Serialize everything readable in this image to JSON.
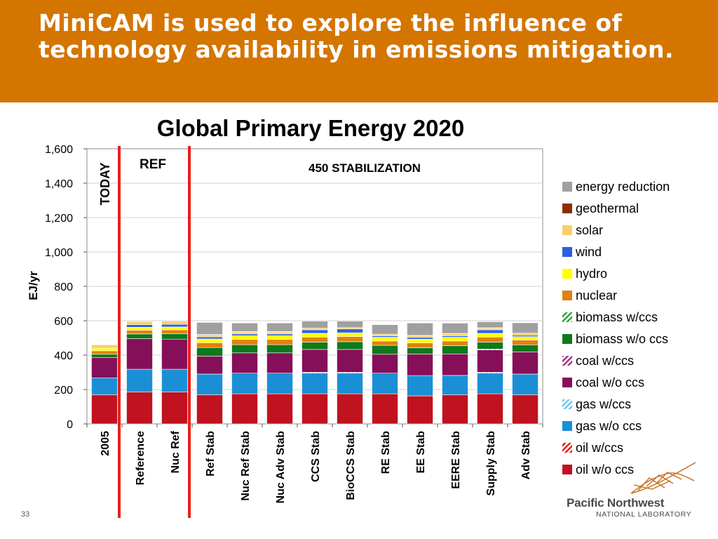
{
  "slide": {
    "title": "MiniCAM is used to explore the influence of technology availability in emissions mitigation.",
    "page_number": "33",
    "logo": {
      "line1": "Pacific Northwest",
      "line2": "NATIONAL LABORATORY",
      "icon": "pnnl-logo-icon"
    }
  },
  "colors": {
    "banner": "#d47500",
    "divider": "#e8201c"
  },
  "chart_data": {
    "type": "bar",
    "stacked": true,
    "title": "Global Primary Energy 2020",
    "ylabel": "EJ/yr",
    "xlabel": "",
    "ylim": [
      0,
      1600
    ],
    "yticks": [
      0,
      200,
      400,
      600,
      800,
      1000,
      1200,
      1400,
      1600
    ],
    "ytick_labels": [
      "0",
      "200",
      "400",
      "600",
      "800",
      "1,000",
      "1,200",
      "1,400",
      "1,600"
    ],
    "grid": true,
    "legend_position": "right",
    "annotations": {
      "today": "TODAY",
      "ref": "REF",
      "stab": "450 STABILIZATION"
    },
    "categories": [
      "2005",
      "Reference",
      "Nuc Ref",
      "Ref Stab",
      "Nuc Ref Stab",
      "Nuc Adv Stab",
      "CCS Stab",
      "BioCCS Stab",
      "RE Stab",
      "EE Stab",
      "EERE Stab",
      "Supply Stab",
      "Adv Stab"
    ],
    "series": [
      {
        "name": "oil w/o ccs",
        "color": "#c0121f",
        "pattern": "solid",
        "values": [
          170,
          185,
          185,
          170,
          175,
          175,
          175,
          175,
          175,
          163,
          170,
          175,
          170
        ]
      },
      {
        "name": "oil w/ccs",
        "color": "#e8201c",
        "pattern": "hatch",
        "values": [
          0,
          0,
          0,
          0,
          0,
          0,
          0,
          0,
          0,
          0,
          0,
          0,
          0
        ]
      },
      {
        "name": "gas w/o ccs",
        "color": "#1b8fd6",
        "pattern": "solid",
        "values": [
          97,
          133,
          133,
          120,
          120,
          120,
          120,
          120,
          120,
          118,
          112,
          120,
          120
        ]
      },
      {
        "name": "gas w/ccs",
        "color": "#6cc8f0",
        "pattern": "hatch",
        "values": [
          0,
          0,
          0,
          0,
          0,
          0,
          5,
          5,
          0,
          0,
          0,
          5,
          0
        ]
      },
      {
        "name": "coal w/o ccs",
        "color": "#860f59",
        "pattern": "solid",
        "values": [
          118,
          178,
          175,
          104,
          118,
          118,
          133,
          133,
          110,
          125,
          125,
          130,
          128
        ]
      },
      {
        "name": "coal w/ccs",
        "color": "#a03a80",
        "pattern": "hatch",
        "values": [
          0,
          0,
          0,
          0,
          0,
          0,
          0,
          0,
          0,
          0,
          0,
          5,
          0
        ]
      },
      {
        "name": "biomass w/o ccs",
        "color": "#0e7a1a",
        "pattern": "solid",
        "values": [
          20,
          27,
          32,
          50,
          48,
          48,
          42,
          45,
          52,
          37,
          48,
          40,
          42
        ]
      },
      {
        "name": "biomass w/ccs",
        "color": "#2fa43a",
        "pattern": "hatch",
        "values": [
          0,
          0,
          0,
          0,
          0,
          0,
          0,
          0,
          0,
          0,
          0,
          0,
          0
        ]
      },
      {
        "name": "nuclear",
        "color": "#e37f12",
        "pattern": "solid",
        "values": [
          20,
          22,
          22,
          28,
          30,
          30,
          30,
          30,
          25,
          28,
          27,
          30,
          28
        ]
      },
      {
        "name": "hydro",
        "color": "#ffff00",
        "pattern": "solid",
        "values": [
          15,
          17,
          17,
          22,
          22,
          22,
          22,
          22,
          22,
          22,
          22,
          22,
          20
        ]
      },
      {
        "name": "wind",
        "color": "#2e5fe0",
        "pattern": "solid",
        "values": [
          0,
          15,
          15,
          12,
          10,
          10,
          20,
          22,
          8,
          10,
          8,
          20,
          8
        ]
      },
      {
        "name": "solar",
        "color": "#f8cf6a",
        "pattern": "solid",
        "values": [
          20,
          18,
          18,
          12,
          12,
          12,
          10,
          8,
          10,
          10,
          12,
          10,
          12
        ]
      },
      {
        "name": "geothermal",
        "color": "#8b3000",
        "pattern": "solid",
        "values": [
          0,
          0,
          0,
          2,
          2,
          2,
          0,
          0,
          0,
          2,
          2,
          2,
          0
        ]
      },
      {
        "name": "energy reduction",
        "color": "#a0a0a0",
        "pattern": "solid",
        "values": [
          0,
          0,
          0,
          70,
          50,
          50,
          40,
          38,
          55,
          72,
          60,
          35,
          60
        ]
      }
    ]
  }
}
